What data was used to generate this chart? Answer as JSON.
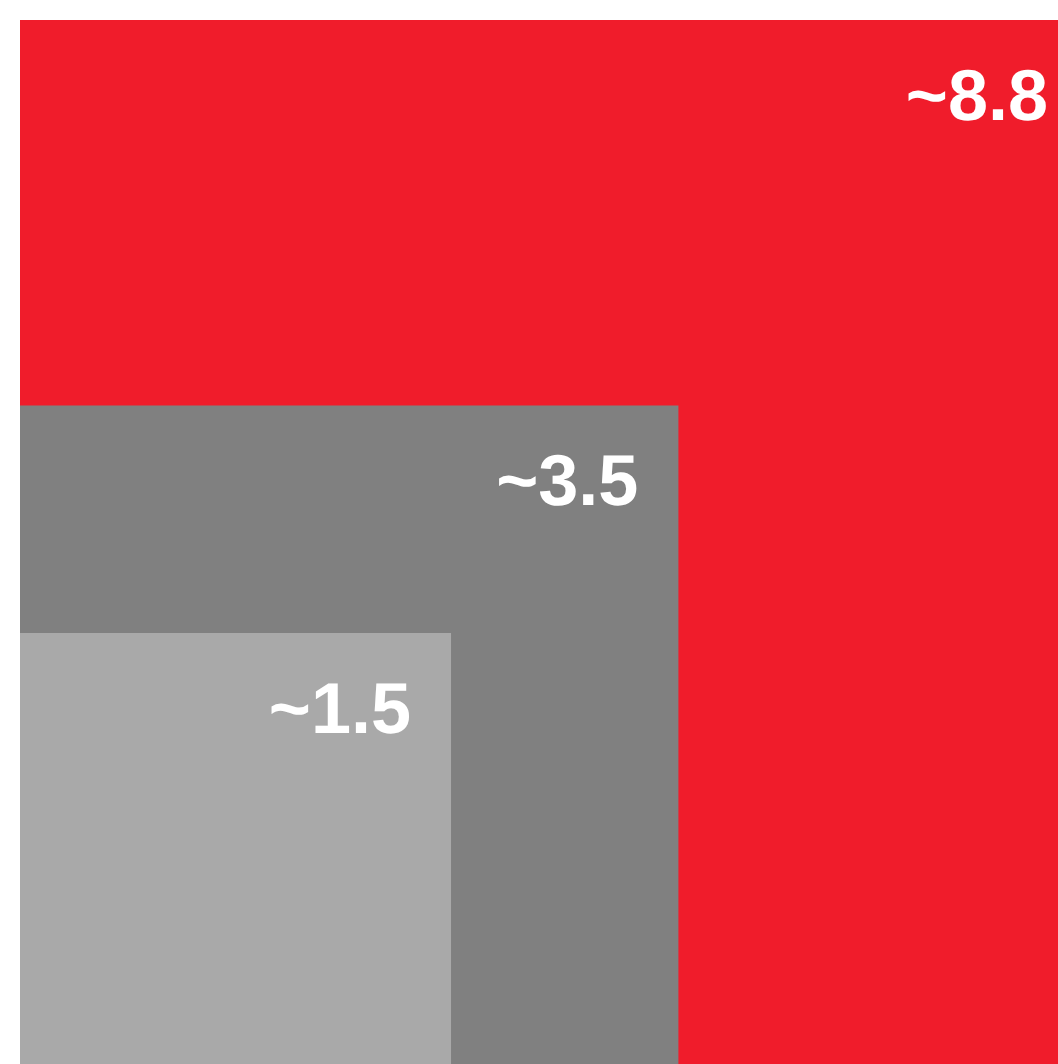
{
  "chart_data": {
    "type": "other",
    "values": [
      8.8,
      3.5,
      1.5
    ],
    "value_labels": [
      "~8.8",
      "~3.5",
      "~1.5"
    ],
    "colors": [
      "#f01c2b",
      "#808080",
      "#a9a9a9"
    ]
  }
}
